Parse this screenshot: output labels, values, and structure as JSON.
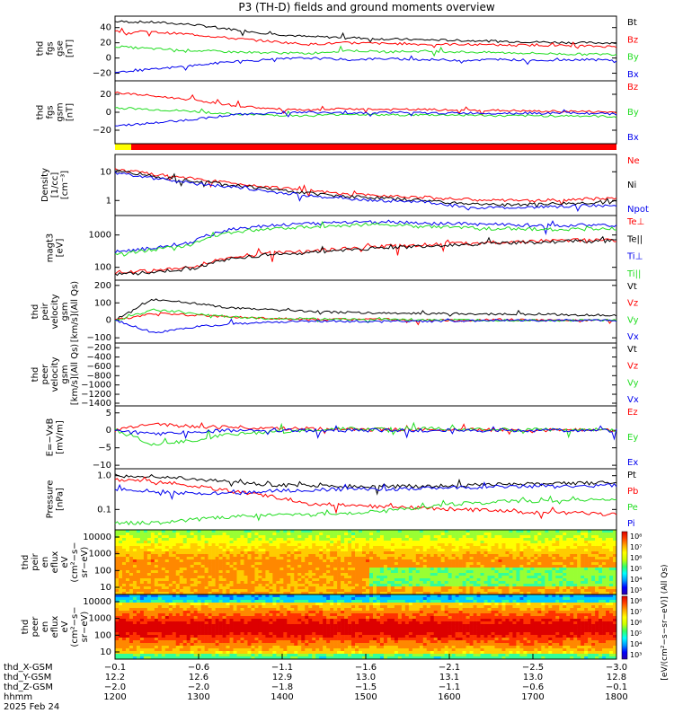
{
  "title": "P3 (TH-D) fields and ground moments overview",
  "colors": {
    "black": "#000000",
    "red": "#ff0000",
    "green": "#22dd22",
    "blue": "#0000ee",
    "yellow": "#ffff00"
  },
  "chart_data": [
    {
      "type": "line",
      "panel": "fgs_gse",
      "ylabel": [
        "thd",
        "fgs",
        "gse",
        "[nT]"
      ],
      "yticks": [
        "40",
        "20",
        "0",
        "−20"
      ],
      "ylim": [
        -30,
        55
      ],
      "series": [
        {
          "name": "Bt",
          "color": "black",
          "values": [
            48,
            47,
            44,
            38,
            32,
            28,
            27,
            25,
            24,
            23,
            22,
            21,
            20,
            20
          ]
        },
        {
          "name": "Bz",
          "color": "red",
          "values": [
            35,
            34,
            31,
            26,
            22,
            18,
            20,
            19,
            18,
            18,
            17,
            17,
            16,
            15
          ]
        },
        {
          "name": "By",
          "color": "green",
          "values": [
            15,
            12,
            10,
            8,
            7,
            6,
            10,
            8,
            9,
            8,
            7,
            6,
            5,
            5
          ]
        },
        {
          "name": "Bx",
          "color": "blue",
          "values": [
            -18,
            -15,
            -10,
            -5,
            -2,
            0,
            -2,
            -1,
            -2,
            -3,
            -2,
            -3,
            -2,
            -3
          ]
        }
      ]
    },
    {
      "type": "line",
      "panel": "fgs_gsm",
      "ylabel": [
        "thd",
        "fgs",
        "gsm",
        "[nT]"
      ],
      "yticks": [
        "20",
        "0",
        "−20"
      ],
      "ylim": [
        -35,
        35
      ],
      "series": [
        {
          "name": "Bz",
          "color": "red",
          "values": [
            22,
            18,
            14,
            8,
            4,
            2,
            4,
            3,
            3,
            2,
            2,
            1,
            1,
            0
          ]
        },
        {
          "name": "By",
          "color": "green",
          "values": [
            5,
            3,
            1,
            -2,
            -3,
            -4,
            -2,
            -3,
            -3,
            -3,
            -4,
            -4,
            -4,
            -5
          ]
        },
        {
          "name": "Bx",
          "color": "blue",
          "values": [
            -15,
            -12,
            -8,
            -3,
            -1,
            0,
            -1,
            0,
            -1,
            -1,
            -1,
            -1,
            -1,
            -2
          ]
        }
      ]
    },
    {
      "type": "line",
      "panel": "density",
      "ylabel": [
        "Density",
        "[1/cc]",
        "[cm⁻³]"
      ],
      "yticks": [
        "10",
        "1"
      ],
      "log": true,
      "ylim": [
        0.3,
        40
      ],
      "series": [
        {
          "name": "Ne",
          "color": "red",
          "values": [
            12,
            8,
            6,
            4,
            3,
            2.2,
            1.6,
            1.5,
            1.3,
            1.1,
            1.0,
            1.0,
            1.1,
            1.2
          ]
        },
        {
          "name": "Ni",
          "color": "black",
          "values": [
            11,
            7,
            5,
            3.5,
            2.5,
            1.8,
            1.4,
            1.2,
            1.0,
            0.8,
            0.7,
            0.75,
            0.8,
            0.9
          ]
        },
        {
          "name": "Npot",
          "color": "blue",
          "values": [
            9,
            6,
            4,
            3,
            2,
            1.5,
            1.1,
            1.0,
            0.9,
            0.6,
            0.55,
            0.6,
            0.65,
            0.7
          ]
        }
      ]
    },
    {
      "type": "line",
      "panel": "temperature",
      "ylabel": [
        "magt3",
        "[eV]"
      ],
      "yticks": [
        "1000",
        "100"
      ],
      "log": true,
      "ylim": [
        40,
        4000
      ],
      "series": [
        {
          "name": "Te⊥",
          "color": "red",
          "values": [
            70,
            80,
            100,
            200,
            300,
            300,
            400,
            450,
            500,
            550,
            600,
            650,
            700,
            700
          ]
        },
        {
          "name": "Te||",
          "color": "black",
          "values": [
            60,
            70,
            90,
            180,
            250,
            280,
            350,
            400,
            450,
            500,
            550,
            600,
            650,
            650
          ]
        },
        {
          "name": "Ti⊥",
          "color": "blue",
          "values": [
            300,
            400,
            600,
            1500,
            2000,
            2200,
            2500,
            2600,
            2300,
            2200,
            2100,
            2000,
            2000,
            2000
          ]
        },
        {
          "name": "Ti||",
          "color": "green",
          "values": [
            250,
            350,
            500,
            1200,
            1600,
            1800,
            2000,
            2200,
            1800,
            1700,
            1600,
            1500,
            1500,
            1600
          ]
        }
      ]
    },
    {
      "type": "line",
      "panel": "peir_velocity",
      "ylabel": [
        "thd",
        "peir",
        "velocity",
        "gsm",
        "[km/s](All Qs)"
      ],
      "yticks": [
        "200",
        "100",
        "0",
        "−100"
      ],
      "ylim": [
        -130,
        230
      ],
      "series": [
        {
          "name": "Vt",
          "color": "black",
          "values": [
            0,
            120,
            100,
            70,
            60,
            50,
            45,
            40,
            40,
            38,
            35,
            35,
            30,
            30
          ]
        },
        {
          "name": "Vz",
          "color": "red",
          "values": [
            0,
            40,
            30,
            20,
            10,
            5,
            5,
            5,
            0,
            0,
            5,
            0,
            0,
            0
          ]
        },
        {
          "name": "Vy",
          "color": "green",
          "values": [
            0,
            60,
            40,
            20,
            10,
            10,
            5,
            5,
            5,
            0,
            0,
            0,
            0,
            0
          ]
        },
        {
          "name": "Vx",
          "color": "blue",
          "values": [
            0,
            -70,
            -40,
            -20,
            -10,
            -5,
            -5,
            -5,
            -5,
            -5,
            0,
            0,
            0,
            0
          ]
        }
      ]
    },
    {
      "type": "line",
      "panel": "peer_velocity",
      "ylabel": [
        "thd",
        "peer",
        "velocity",
        "gsm",
        "[km/s](All Qs)"
      ],
      "yticks": [
        "−200",
        "−400",
        "−600",
        "−800",
        "−1000",
        "−1200",
        "−1400"
      ],
      "ylim": [
        -1450,
        -100
      ],
      "series": [
        {
          "name": "Vt",
          "color": "black",
          "values": []
        },
        {
          "name": "Vz",
          "color": "red",
          "values": []
        },
        {
          "name": "Vy",
          "color": "green",
          "values": []
        },
        {
          "name": "Vx",
          "color": "blue",
          "values": []
        }
      ]
    },
    {
      "type": "line",
      "panel": "efield",
      "ylabel": [
        "E=−VxB",
        "[mV/m]"
      ],
      "yticks": [
        "5",
        "0",
        "−5",
        "−10"
      ],
      "ylim": [
        -11,
        7
      ],
      "series": [
        {
          "name": "Ez",
          "color": "red",
          "values": [
            0,
            2,
            1,
            1,
            0.5,
            0.5,
            0.3,
            0.2,
            0.3,
            0.2,
            0.2,
            0.1,
            0.1,
            0.1
          ]
        },
        {
          "name": "Ey",
          "color": "green",
          "values": [
            0,
            -4,
            -3,
            -1,
            -0.5,
            0,
            0.5,
            0.3,
            0.5,
            0.3,
            0.2,
            0.2,
            0.2,
            0.2
          ]
        },
        {
          "name": "Ex",
          "color": "blue",
          "values": [
            0,
            -1,
            -0.5,
            0,
            0,
            0,
            0,
            0,
            0,
            0,
            0,
            0,
            0,
            0
          ]
        }
      ]
    },
    {
      "type": "line",
      "panel": "pressure",
      "ylabel": [
        "Pressure",
        "[nPa]"
      ],
      "yticks": [
        "1.0",
        "0.1"
      ],
      "log": true,
      "ylim": [
        0.025,
        1.6
      ],
      "series": [
        {
          "name": "Pt",
          "color": "black",
          "values": [
            1.0,
            0.95,
            0.8,
            0.65,
            0.55,
            0.5,
            0.5,
            0.48,
            0.5,
            0.52,
            0.55,
            0.58,
            0.6,
            0.62
          ]
        },
        {
          "name": "Pb",
          "color": "red",
          "values": [
            0.75,
            0.7,
            0.5,
            0.35,
            0.25,
            0.15,
            0.14,
            0.12,
            0.11,
            0.1,
            0.09,
            0.08,
            0.08,
            0.07
          ]
        },
        {
          "name": "Pe",
          "color": "green",
          "values": [
            0.04,
            0.04,
            0.05,
            0.06,
            0.07,
            0.07,
            0.08,
            0.09,
            0.12,
            0.15,
            0.17,
            0.18,
            0.19,
            0.2
          ]
        },
        {
          "name": "Pi",
          "color": "blue",
          "values": [
            0.4,
            0.35,
            0.3,
            0.3,
            0.35,
            0.38,
            0.4,
            0.4,
            0.42,
            0.45,
            0.48,
            0.5,
            0.5,
            0.52
          ]
        }
      ]
    },
    {
      "type": "heatmap",
      "panel": "peir_spectrogram",
      "ylabel": [
        "thd",
        "peir",
        "en",
        "eflux",
        "eV",
        "(cm²−s−",
        "sr−eV)"
      ],
      "yticks": [
        "10000",
        "1000",
        "100",
        "10"
      ],
      "log": true
    },
    {
      "type": "heatmap",
      "panel": "peer_spectrogram",
      "ylabel": [
        "thd",
        "peer",
        "en",
        "eflux",
        "eV",
        "(cm²−s−",
        "sr−eV)"
      ],
      "yticks": [
        "10000",
        "1000",
        "100",
        "10"
      ],
      "log": true
    }
  ],
  "colorbar": {
    "ticks_top": [
      "10⁸",
      "10⁷",
      "10⁶",
      "10⁵",
      "10⁴",
      "10³"
    ],
    "ticks_bottom": [
      "10⁸",
      "10⁷",
      "10⁶",
      "10⁵",
      "10⁴",
      "10³"
    ],
    "label": "[eV/(cm²−s−sr−eV)] (All Qs)"
  },
  "xaxis": {
    "rows": [
      {
        "label": "thd_X-GSM",
        "values": [
          "−0.1",
          "−0.6",
          "−1.1",
          "−1.6",
          "−2.1",
          "−2.5",
          "−3.0"
        ]
      },
      {
        "label": "thd_Y-GSM",
        "values": [
          "12.2",
          "12.6",
          "12.9",
          "13.0",
          "13.1",
          "13.0",
          "12.8"
        ]
      },
      {
        "label": "thd_Z-GSM",
        "values": [
          "−2.0",
          "−2.0",
          "−1.8",
          "−1.5",
          "−1.1",
          "−0.6",
          "−0.1"
        ]
      },
      {
        "label": "hhmm",
        "values": [
          "1200",
          "1300",
          "1400",
          "1500",
          "1600",
          "1700",
          "1800"
        ]
      }
    ],
    "date": "2025 Feb 24"
  }
}
